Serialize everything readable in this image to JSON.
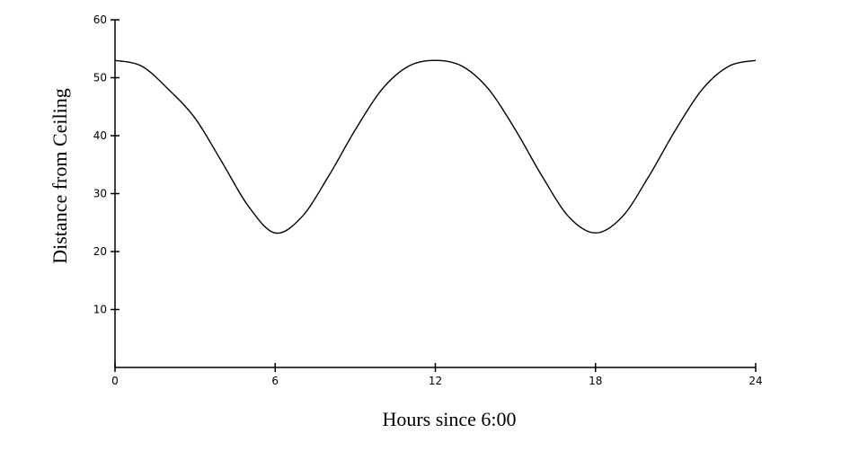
{
  "chart_data": {
    "type": "line",
    "title": "",
    "xlabel": "Hours since 6:00",
    "ylabel": "Distance from Ceiling",
    "xlim": [
      0,
      24
    ],
    "ylim": [
      0,
      60
    ],
    "xticks": [
      0,
      6,
      12,
      18,
      24
    ],
    "yticks": [
      10,
      20,
      30,
      40,
      50,
      60
    ],
    "grid": false,
    "legend": "none",
    "series": [
      {
        "color": "#000000",
        "x": [
          0,
          1,
          2,
          3,
          4,
          5,
          6,
          7,
          8,
          9,
          10,
          11,
          12,
          13,
          14,
          15,
          16,
          17,
          18,
          19,
          20,
          21,
          22,
          23,
          24
        ],
        "y": [
          53,
          52,
          48,
          43,
          35.5,
          27.8,
          23.2,
          26,
          33,
          41,
          48,
          52,
          53,
          52,
          48,
          41,
          33,
          26,
          23.2,
          26,
          33,
          41,
          48,
          52,
          53
        ]
      }
    ]
  }
}
